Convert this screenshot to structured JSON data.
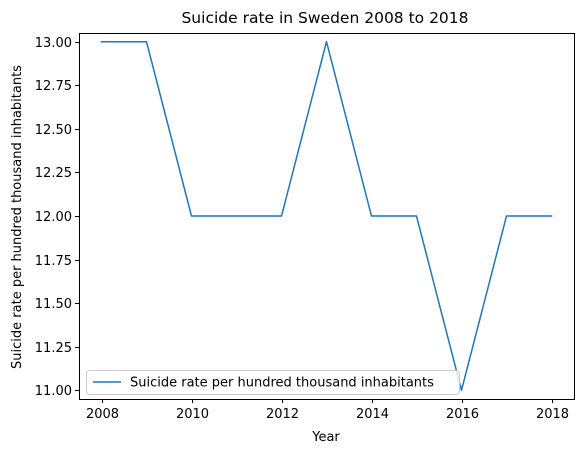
{
  "chart_data": {
    "type": "line",
    "title": "Suicide rate in Sweden 2008 to 2018",
    "xlabel": "Year",
    "ylabel": "Suicide rate per hundred thousand inhabitants",
    "x": [
      2008,
      2009,
      2010,
      2011,
      2012,
      2013,
      2014,
      2015,
      2016,
      2017,
      2018
    ],
    "series": [
      {
        "name": "Suicide rate per hundred thousand inhabitants",
        "values": [
          13,
          13,
          12,
          12,
          12,
          13,
          12,
          12,
          11,
          12,
          12
        ],
        "color": "#1f77b4"
      }
    ],
    "xlim": [
      2007.5,
      2018.5
    ],
    "ylim": [
      10.95,
      13.05
    ],
    "xticks": [
      2008,
      2010,
      2012,
      2014,
      2016,
      2018
    ],
    "xtick_labels": [
      "2008",
      "2010",
      "2012",
      "2014",
      "2016",
      "2018"
    ],
    "yticks": [
      11.0,
      11.25,
      11.5,
      11.75,
      12.0,
      12.25,
      12.5,
      12.75,
      13.0
    ],
    "ytick_labels": [
      "11.00",
      "11.25",
      "11.50",
      "11.75",
      "12.00",
      "12.25",
      "12.50",
      "12.75",
      "13.00"
    ],
    "grid": false,
    "legend_position": "lower-left"
  }
}
